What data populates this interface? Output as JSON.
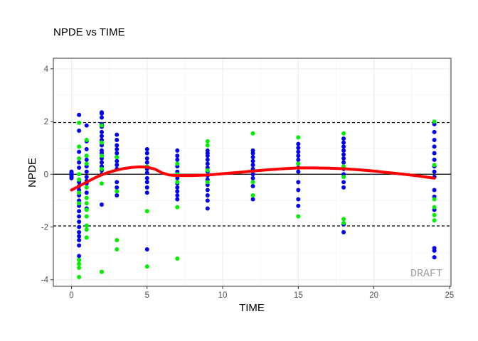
{
  "chart_data": {
    "type": "scatter",
    "title": "NPDE vs TIME",
    "xlabel": "TIME",
    "ylabel": "NPDE",
    "xlim": [
      -1.2,
      25.1
    ],
    "ylim": [
      -4.25,
      4.4
    ],
    "xticks": [
      0,
      5,
      10,
      15,
      20,
      25
    ],
    "yticks": [
      -4,
      -2,
      0,
      2,
      4
    ],
    "grid": true,
    "reference_lines": {
      "solid": [
        0
      ],
      "dashed": [
        -1.96,
        1.96
      ]
    },
    "watermark": "DRAFT",
    "colors": {
      "series_a": "#0000ee",
      "series_b": "#00ee00",
      "smooth": "#ff0000"
    },
    "series": [
      {
        "color": "#0000ee",
        "points": [
          [
            0,
            0.1
          ],
          [
            0,
            0.05
          ],
          [
            0,
            0.0
          ],
          [
            0,
            -0.05
          ],
          [
            0,
            -0.1
          ],
          [
            0,
            -0.15
          ],
          [
            0,
            0.08
          ],
          [
            0,
            -0.02
          ],
          [
            0.5,
            2.25
          ],
          [
            0.5,
            1.65
          ],
          [
            0.5,
            0.85
          ],
          [
            0.5,
            0.45
          ],
          [
            0.5,
            0.25
          ],
          [
            0.5,
            -0.3
          ],
          [
            0.5,
            -0.45
          ],
          [
            0.5,
            -0.6
          ],
          [
            0.5,
            -0.8
          ],
          [
            0.5,
            -1.0
          ],
          [
            0.5,
            -1.2
          ],
          [
            0.5,
            -1.4
          ],
          [
            0.5,
            -1.6
          ],
          [
            0.5,
            -1.8
          ],
          [
            0.5,
            -2.0
          ],
          [
            0.5,
            -2.2
          ],
          [
            0.5,
            -2.35
          ],
          [
            0.5,
            -2.5
          ],
          [
            0.5,
            -2.7
          ],
          [
            0.5,
            -3.1
          ],
          [
            1,
            1.85
          ],
          [
            1,
            1.25
          ],
          [
            1,
            0.95
          ],
          [
            1,
            0.55
          ],
          [
            1,
            0.3
          ],
          [
            1,
            0.1
          ],
          [
            1,
            -0.1
          ],
          [
            1,
            -0.25
          ],
          [
            1,
            -0.35
          ],
          [
            1,
            -0.7
          ],
          [
            1,
            -1.3
          ],
          [
            1,
            -1.95
          ],
          [
            2,
            2.35
          ],
          [
            2,
            2.3
          ],
          [
            2,
            2.15
          ],
          [
            2,
            1.9
          ],
          [
            2,
            1.8
          ],
          [
            2,
            1.6
          ],
          [
            2,
            1.45
          ],
          [
            2,
            1.3
          ],
          [
            2,
            1.1
          ],
          [
            2,
            0.9
          ],
          [
            2,
            0.8
          ],
          [
            2,
            0.6
          ],
          [
            2,
            0.45
          ],
          [
            2,
            0.3
          ],
          [
            2,
            0.15
          ],
          [
            2,
            0.0
          ],
          [
            2,
            -1.15
          ],
          [
            3,
            1.5
          ],
          [
            3,
            1.3
          ],
          [
            3,
            1.1
          ],
          [
            3,
            0.95
          ],
          [
            3,
            0.8
          ],
          [
            3,
            0.65
          ],
          [
            3,
            0.5
          ],
          [
            3,
            0.35
          ],
          [
            3,
            0.2
          ],
          [
            3,
            -0.3
          ],
          [
            3,
            -0.5
          ],
          [
            3,
            -0.8
          ],
          [
            5,
            0.95
          ],
          [
            5,
            0.8
          ],
          [
            5,
            0.6
          ],
          [
            5,
            0.45
          ],
          [
            5,
            0.2
          ],
          [
            5,
            0.05
          ],
          [
            5,
            -0.15
          ],
          [
            5,
            -0.3
          ],
          [
            5,
            -0.5
          ],
          [
            5,
            -0.7
          ],
          [
            5,
            -2.85
          ],
          [
            7,
            0.9
          ],
          [
            7,
            0.7
          ],
          [
            7,
            0.55
          ],
          [
            7,
            0.3
          ],
          [
            7,
            0.1
          ],
          [
            7,
            -0.15
          ],
          [
            7,
            -0.35
          ],
          [
            7,
            -0.5
          ],
          [
            7,
            -0.65
          ],
          [
            7,
            -0.8
          ],
          [
            7,
            -0.95
          ],
          [
            9,
            0.9
          ],
          [
            9,
            0.8
          ],
          [
            9,
            0.7
          ],
          [
            9,
            0.55
          ],
          [
            9,
            0.4
          ],
          [
            9,
            0.25
          ],
          [
            9,
            0.1
          ],
          [
            9,
            -0.05
          ],
          [
            9,
            -0.2
          ],
          [
            9,
            -0.4
          ],
          [
            9,
            -0.6
          ],
          [
            9,
            -0.8
          ],
          [
            9,
            -1.0
          ],
          [
            9,
            -1.3
          ],
          [
            12,
            0.9
          ],
          [
            12,
            0.8
          ],
          [
            12,
            0.65
          ],
          [
            12,
            0.5
          ],
          [
            12,
            0.35
          ],
          [
            12,
            0.2
          ],
          [
            12,
            0.0
          ],
          [
            12,
            -0.15
          ],
          [
            12,
            -0.45
          ],
          [
            12,
            -0.95
          ],
          [
            15,
            1.15
          ],
          [
            15,
            1.0
          ],
          [
            15,
            0.85
          ],
          [
            15,
            0.7
          ],
          [
            15,
            0.55
          ],
          [
            15,
            0.4
          ],
          [
            15,
            0.25
          ],
          [
            15,
            0.1
          ],
          [
            15,
            -0.3
          ],
          [
            15,
            -0.6
          ],
          [
            15,
            -0.95
          ],
          [
            15,
            -1.2
          ],
          [
            18,
            1.35
          ],
          [
            18,
            1.2
          ],
          [
            18,
            1.05
          ],
          [
            18,
            0.9
          ],
          [
            18,
            0.75
          ],
          [
            18,
            0.6
          ],
          [
            18,
            0.45
          ],
          [
            18,
            0.2
          ],
          [
            18,
            0.0
          ],
          [
            18,
            -0.3
          ],
          [
            18,
            -0.5
          ],
          [
            18,
            -1.9
          ],
          [
            18,
            -2.2
          ],
          [
            24,
            1.9
          ],
          [
            24,
            1.6
          ],
          [
            24,
            1.3
          ],
          [
            24,
            1.05
          ],
          [
            24,
            0.8
          ],
          [
            24,
            0.55
          ],
          [
            24,
            0.3
          ],
          [
            24,
            0.1
          ],
          [
            24,
            -0.1
          ],
          [
            24,
            -0.6
          ],
          [
            24,
            -0.85
          ],
          [
            24,
            -1.35
          ],
          [
            24,
            -2.8
          ],
          [
            24,
            -2.9
          ],
          [
            24,
            -3.15
          ]
        ]
      },
      {
        "color": "#00ee00",
        "points": [
          [
            0.5,
            1.95
          ],
          [
            0.5,
            1.05
          ],
          [
            0.5,
            0.6
          ],
          [
            0.5,
            0.0
          ],
          [
            0.5,
            -0.2
          ],
          [
            0.5,
            -0.7
          ],
          [
            0.5,
            -1.1
          ],
          [
            0.5,
            -3.25
          ],
          [
            0.5,
            -3.4
          ],
          [
            0.5,
            -3.55
          ],
          [
            0.5,
            -3.9
          ],
          [
            1,
            1.3
          ],
          [
            1,
            0.7
          ],
          [
            1,
            0.4
          ],
          [
            1,
            -0.5
          ],
          [
            1,
            -0.9
          ],
          [
            1,
            -1.1
          ],
          [
            1,
            -1.35
          ],
          [
            1,
            -1.6
          ],
          [
            1,
            -1.95
          ],
          [
            1,
            -2.1
          ],
          [
            1,
            -2.4
          ],
          [
            2,
            1.85
          ],
          [
            2,
            1.2
          ],
          [
            2,
            0.7
          ],
          [
            2,
            0.2
          ],
          [
            2,
            -0.35
          ],
          [
            2,
            -3.7
          ],
          [
            3,
            0.65
          ],
          [
            3,
            -0.65
          ],
          [
            3,
            -2.5
          ],
          [
            3,
            -2.85
          ],
          [
            5,
            0.3
          ],
          [
            5,
            -1.4
          ],
          [
            5,
            -3.5
          ],
          [
            7,
            0.4
          ],
          [
            7,
            0.0
          ],
          [
            7,
            -0.3
          ],
          [
            7,
            -1.25
          ],
          [
            7,
            -3.2
          ],
          [
            9,
            1.25
          ],
          [
            9,
            1.1
          ],
          [
            9,
            0.15
          ],
          [
            9,
            -0.3
          ],
          [
            12,
            1.55
          ],
          [
            12,
            -0.3
          ],
          [
            12,
            -0.8
          ],
          [
            15,
            1.4
          ],
          [
            15,
            0.4
          ],
          [
            15,
            -1.6
          ],
          [
            18,
            1.55
          ],
          [
            18,
            0.3
          ],
          [
            18,
            -0.1
          ],
          [
            18,
            -1.7
          ],
          [
            18,
            -1.85
          ],
          [
            24,
            2.0
          ],
          [
            24,
            0.35
          ],
          [
            24,
            -0.95
          ],
          [
            24,
            -1.25
          ],
          [
            24,
            -1.55
          ],
          [
            24,
            -1.75
          ]
        ]
      }
    ],
    "smooth_line": {
      "color": "#ff0000",
      "x": [
        0,
        0.5,
        1,
        1.5,
        2,
        2.5,
        3,
        3.5,
        4,
        4.5,
        5,
        5.5,
        6,
        6.5,
        7,
        8,
        9,
        10,
        11,
        12,
        13,
        14,
        15,
        16,
        17,
        18,
        19,
        20,
        21,
        22,
        23,
        24
      ],
      "y": [
        -0.6,
        -0.45,
        -0.3,
        -0.15,
        -0.02,
        0.08,
        0.16,
        0.22,
        0.26,
        0.28,
        0.27,
        0.2,
        0.05,
        -0.03,
        -0.05,
        -0.05,
        -0.03,
        0.02,
        0.07,
        0.12,
        0.17,
        0.21,
        0.24,
        0.24,
        0.23,
        0.21,
        0.17,
        0.12,
        0.06,
        0.0,
        -0.07,
        -0.15
      ]
    }
  }
}
